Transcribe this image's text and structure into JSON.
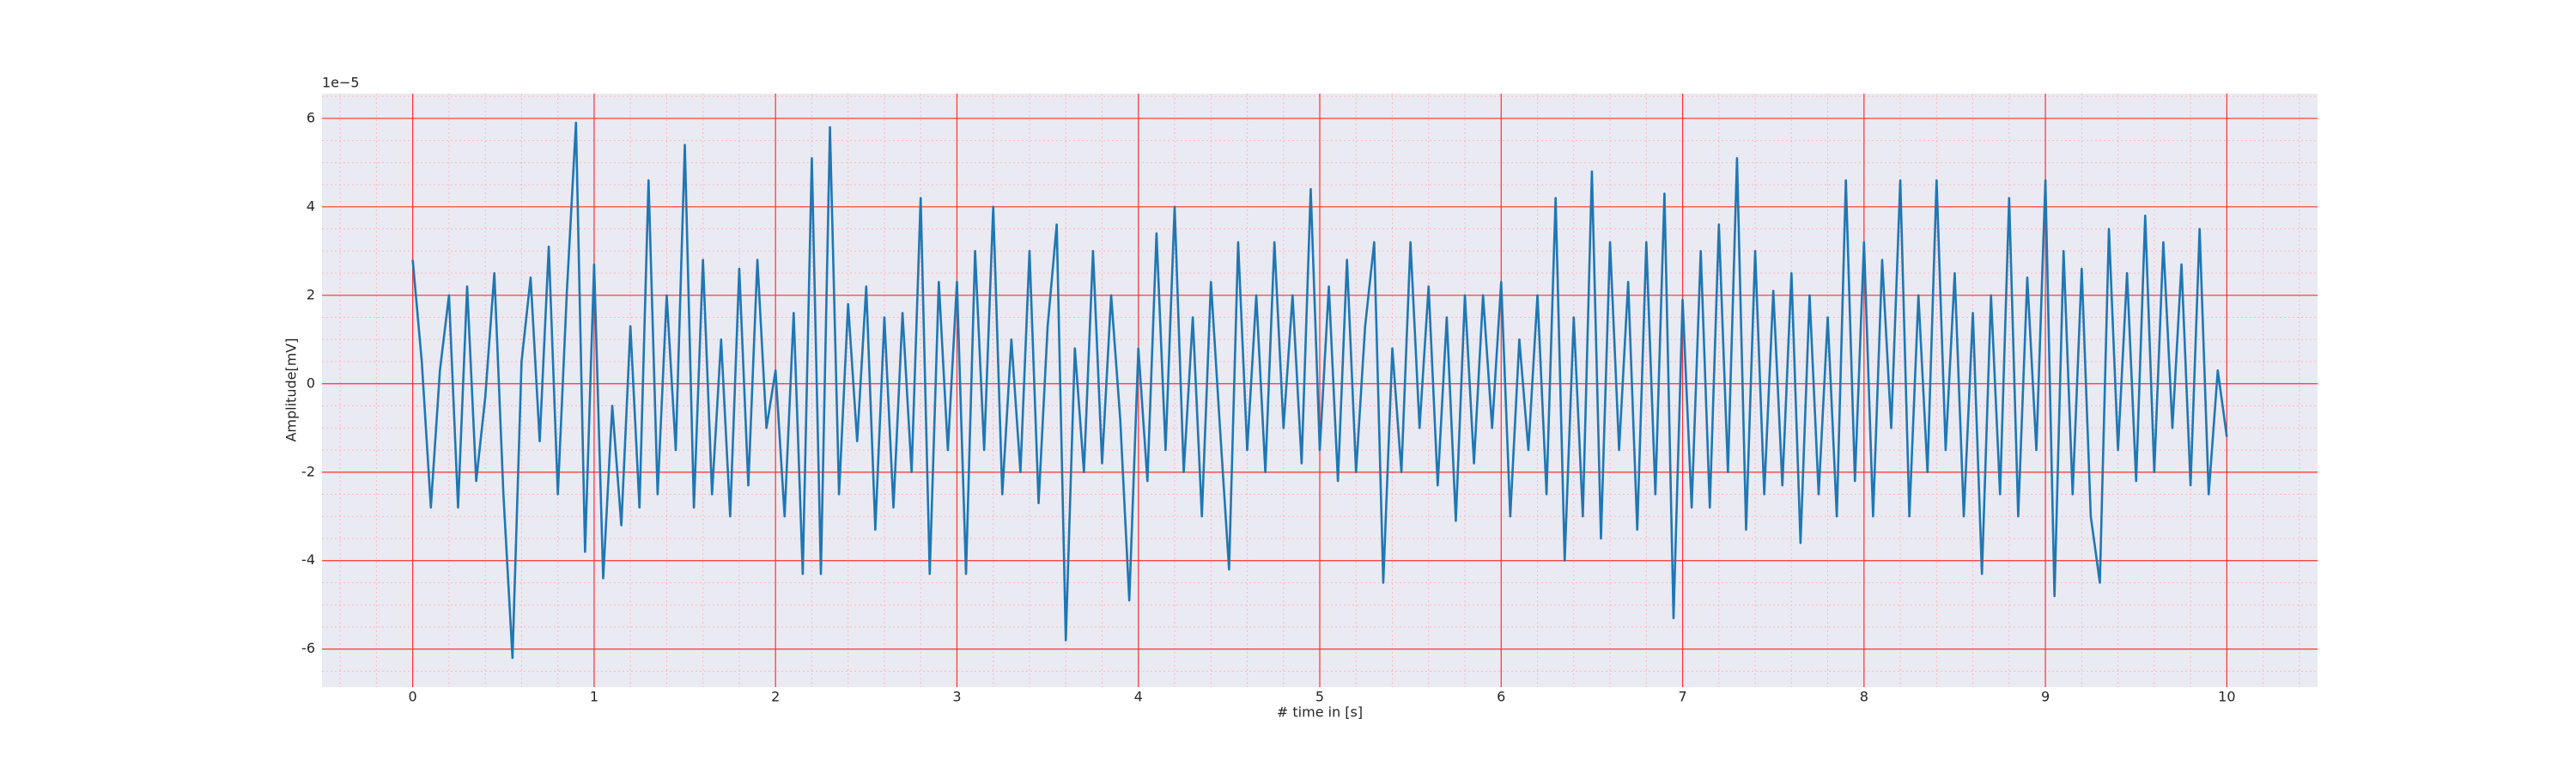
{
  "chart_data": {
    "type": "line",
    "xlabel": "# time in [s]",
    "ylabel": "Amplitude[mV]",
    "y_offset_label": "1e−5",
    "color": "#1f77b4",
    "grid": true,
    "minor_grid": true,
    "xlim": [
      -0.5,
      10.5
    ],
    "ylim": [
      -6.86,
      6.56
    ],
    "xticks": [
      0,
      1,
      2,
      3,
      4,
      5,
      6,
      7,
      8,
      9,
      10
    ],
    "yticks": [
      -6,
      -4,
      -2,
      0,
      2,
      4,
      6
    ],
    "xminorticks": [
      -0.4,
      -0.2,
      0.2,
      0.4,
      0.6,
      0.8,
      1.2,
      1.4,
      1.6,
      1.8,
      2.2,
      2.4,
      2.6,
      2.8,
      3.2,
      3.4,
      3.6,
      3.8,
      4.2,
      4.4,
      4.6,
      4.8,
      5.2,
      5.4,
      5.6,
      5.8,
      6.2,
      6.4,
      6.6,
      6.8,
      7.2,
      7.4,
      7.6,
      7.8,
      8.2,
      8.4,
      8.6,
      8.8,
      9.2,
      9.4,
      9.6,
      9.8,
      10.2,
      10.4
    ],
    "yminorticks": [
      -6.5,
      -5.5,
      -5,
      -4.5,
      -3.5,
      -3,
      -2.5,
      -1.5,
      -1,
      -0.5,
      0.5,
      1,
      1.5,
      2.5,
      3,
      3.5,
      4.5,
      5,
      5.5,
      6.5
    ],
    "x": [
      0,
      0.05,
      0.1,
      0.15,
      0.2,
      0.25,
      0.3,
      0.35,
      0.4,
      0.45,
      0.5,
      0.55,
      0.6,
      0.65,
      0.7,
      0.75,
      0.8,
      0.85,
      0.9,
      0.95,
      1,
      1.05,
      1.1,
      1.15,
      1.2,
      1.25,
      1.3,
      1.35,
      1.4,
      1.45,
      1.5,
      1.55,
      1.6,
      1.65,
      1.7,
      1.75,
      1.8,
      1.85,
      1.9,
      1.95,
      2,
      2.05,
      2.1,
      2.15,
      2.2,
      2.25,
      2.3,
      2.35,
      2.4,
      2.45,
      2.5,
      2.55,
      2.6,
      2.65,
      2.7,
      2.75,
      2.8,
      2.85,
      2.9,
      2.95,
      3,
      3.05,
      3.1,
      3.15,
      3.2,
      3.25,
      3.3,
      3.35,
      3.4,
      3.45,
      3.5,
      3.55,
      3.6,
      3.65,
      3.7,
      3.75,
      3.8,
      3.85,
      3.9,
      3.95,
      4,
      4.05,
      4.1,
      4.15,
      4.2,
      4.25,
      4.3,
      4.35,
      4.4,
      4.45,
      4.5,
      4.55,
      4.6,
      4.65,
      4.7,
      4.75,
      4.8,
      4.85,
      4.9,
      4.95,
      5,
      5.05,
      5.1,
      5.15,
      5.2,
      5.25,
      5.3,
      5.35,
      5.4,
      5.45,
      5.5,
      5.55,
      5.6,
      5.65,
      5.7,
      5.75,
      5.8,
      5.85,
      5.9,
      5.95,
      6,
      6.05,
      6.1,
      6.15,
      6.2,
      6.25,
      6.3,
      6.35,
      6.4,
      6.45,
      6.5,
      6.55,
      6.6,
      6.65,
      6.7,
      6.75,
      6.8,
      6.85,
      6.9,
      6.95,
      7,
      7.05,
      7.1,
      7.15,
      7.2,
      7.25,
      7.3,
      7.35,
      7.4,
      7.45,
      7.5,
      7.55,
      7.6,
      7.65,
      7.7,
      7.75,
      7.8,
      7.85,
      7.9,
      7.95,
      8,
      8.05,
      8.1,
      8.15,
      8.2,
      8.25,
      8.3,
      8.35,
      8.4,
      8.45,
      8.5,
      8.55,
      8.6,
      8.65,
      8.7,
      8.75,
      8.8,
      8.85,
      8.9,
      8.95,
      9,
      9.05,
      9.1,
      9.15,
      9.2,
      9.25,
      9.3,
      9.35,
      9.4,
      9.45,
      9.5,
      9.55,
      9.6,
      9.65,
      9.7,
      9.75,
      9.8,
      9.85,
      9.9,
      9.95,
      10
    ],
    "values": [
      2.8,
      0.5,
      -2.8,
      0.3,
      2.0,
      -2.8,
      2.2,
      -2.2,
      -0.3,
      2.5,
      -2.5,
      -6.2,
      0.5,
      2.4,
      -1.3,
      3.1,
      -2.5,
      2.1,
      5.9,
      -3.8,
      2.7,
      -4.4,
      -0.5,
      -3.2,
      1.3,
      -2.8,
      4.6,
      -2.5,
      2.0,
      -1.5,
      5.4,
      -2.8,
      2.8,
      -2.5,
      1.0,
      -3.0,
      2.6,
      -2.3,
      2.8,
      -1.0,
      0.3,
      -3.0,
      1.6,
      -4.3,
      5.1,
      -4.3,
      5.8,
      -2.5,
      1.8,
      -1.3,
      2.2,
      -3.3,
      1.5,
      -2.8,
      1.6,
      -2.0,
      4.2,
      -4.3,
      2.3,
      -1.5,
      2.3,
      -4.3,
      3.0,
      -1.5,
      4.0,
      -2.5,
      1.0,
      -2.0,
      3.0,
      -2.7,
      1.3,
      3.6,
      -5.8,
      0.8,
      -2.0,
      3.0,
      -1.8,
      2.0,
      -0.8,
      -4.9,
      0.8,
      -2.2,
      3.4,
      -1.5,
      4.0,
      -2.0,
      1.5,
      -3.0,
      2.3,
      -1.0,
      -4.2,
      3.2,
      -1.5,
      2.0,
      -2.0,
      3.2,
      -1.0,
      2.0,
      -1.8,
      4.4,
      -1.5,
      2.2,
      -2.2,
      2.8,
      -2.0,
      1.3,
      3.2,
      -4.5,
      0.8,
      -2.0,
      3.2,
      -1.0,
      2.2,
      -2.3,
      1.5,
      -3.1,
      2.0,
      -1.8,
      2.0,
      -1.0,
      2.3,
      -3.0,
      1.0,
      -1.5,
      2.0,
      -2.5,
      4.2,
      -4.0,
      1.5,
      -3.0,
      4.8,
      -3.5,
      3.2,
      -1.5,
      2.3,
      -3.3,
      3.2,
      -2.5,
      4.3,
      -5.3,
      1.9,
      -2.8,
      3.0,
      -2.8,
      3.6,
      -2.0,
      5.1,
      -3.3,
      3.0,
      -2.5,
      2.1,
      -2.3,
      2.5,
      -3.6,
      2.0,
      -2.5,
      1.5,
      -3.0,
      4.6,
      -2.2,
      3.2,
      -3.0,
      2.8,
      -1.0,
      4.6,
      -3.0,
      2.0,
      -2.0,
      4.6,
      -1.5,
      2.5,
      -3.0,
      1.6,
      -4.3,
      2.0,
      -2.5,
      4.2,
      -3.0,
      2.4,
      -1.5,
      4.6,
      -4.8,
      3.0,
      -2.5,
      2.6,
      -3.0,
      -4.5,
      3.5,
      -1.5,
      2.5,
      -2.2,
      3.8,
      -2.0,
      3.2,
      -1.0,
      2.7,
      -2.3,
      3.5,
      -2.5,
      0.3,
      -1.2
    ]
  }
}
